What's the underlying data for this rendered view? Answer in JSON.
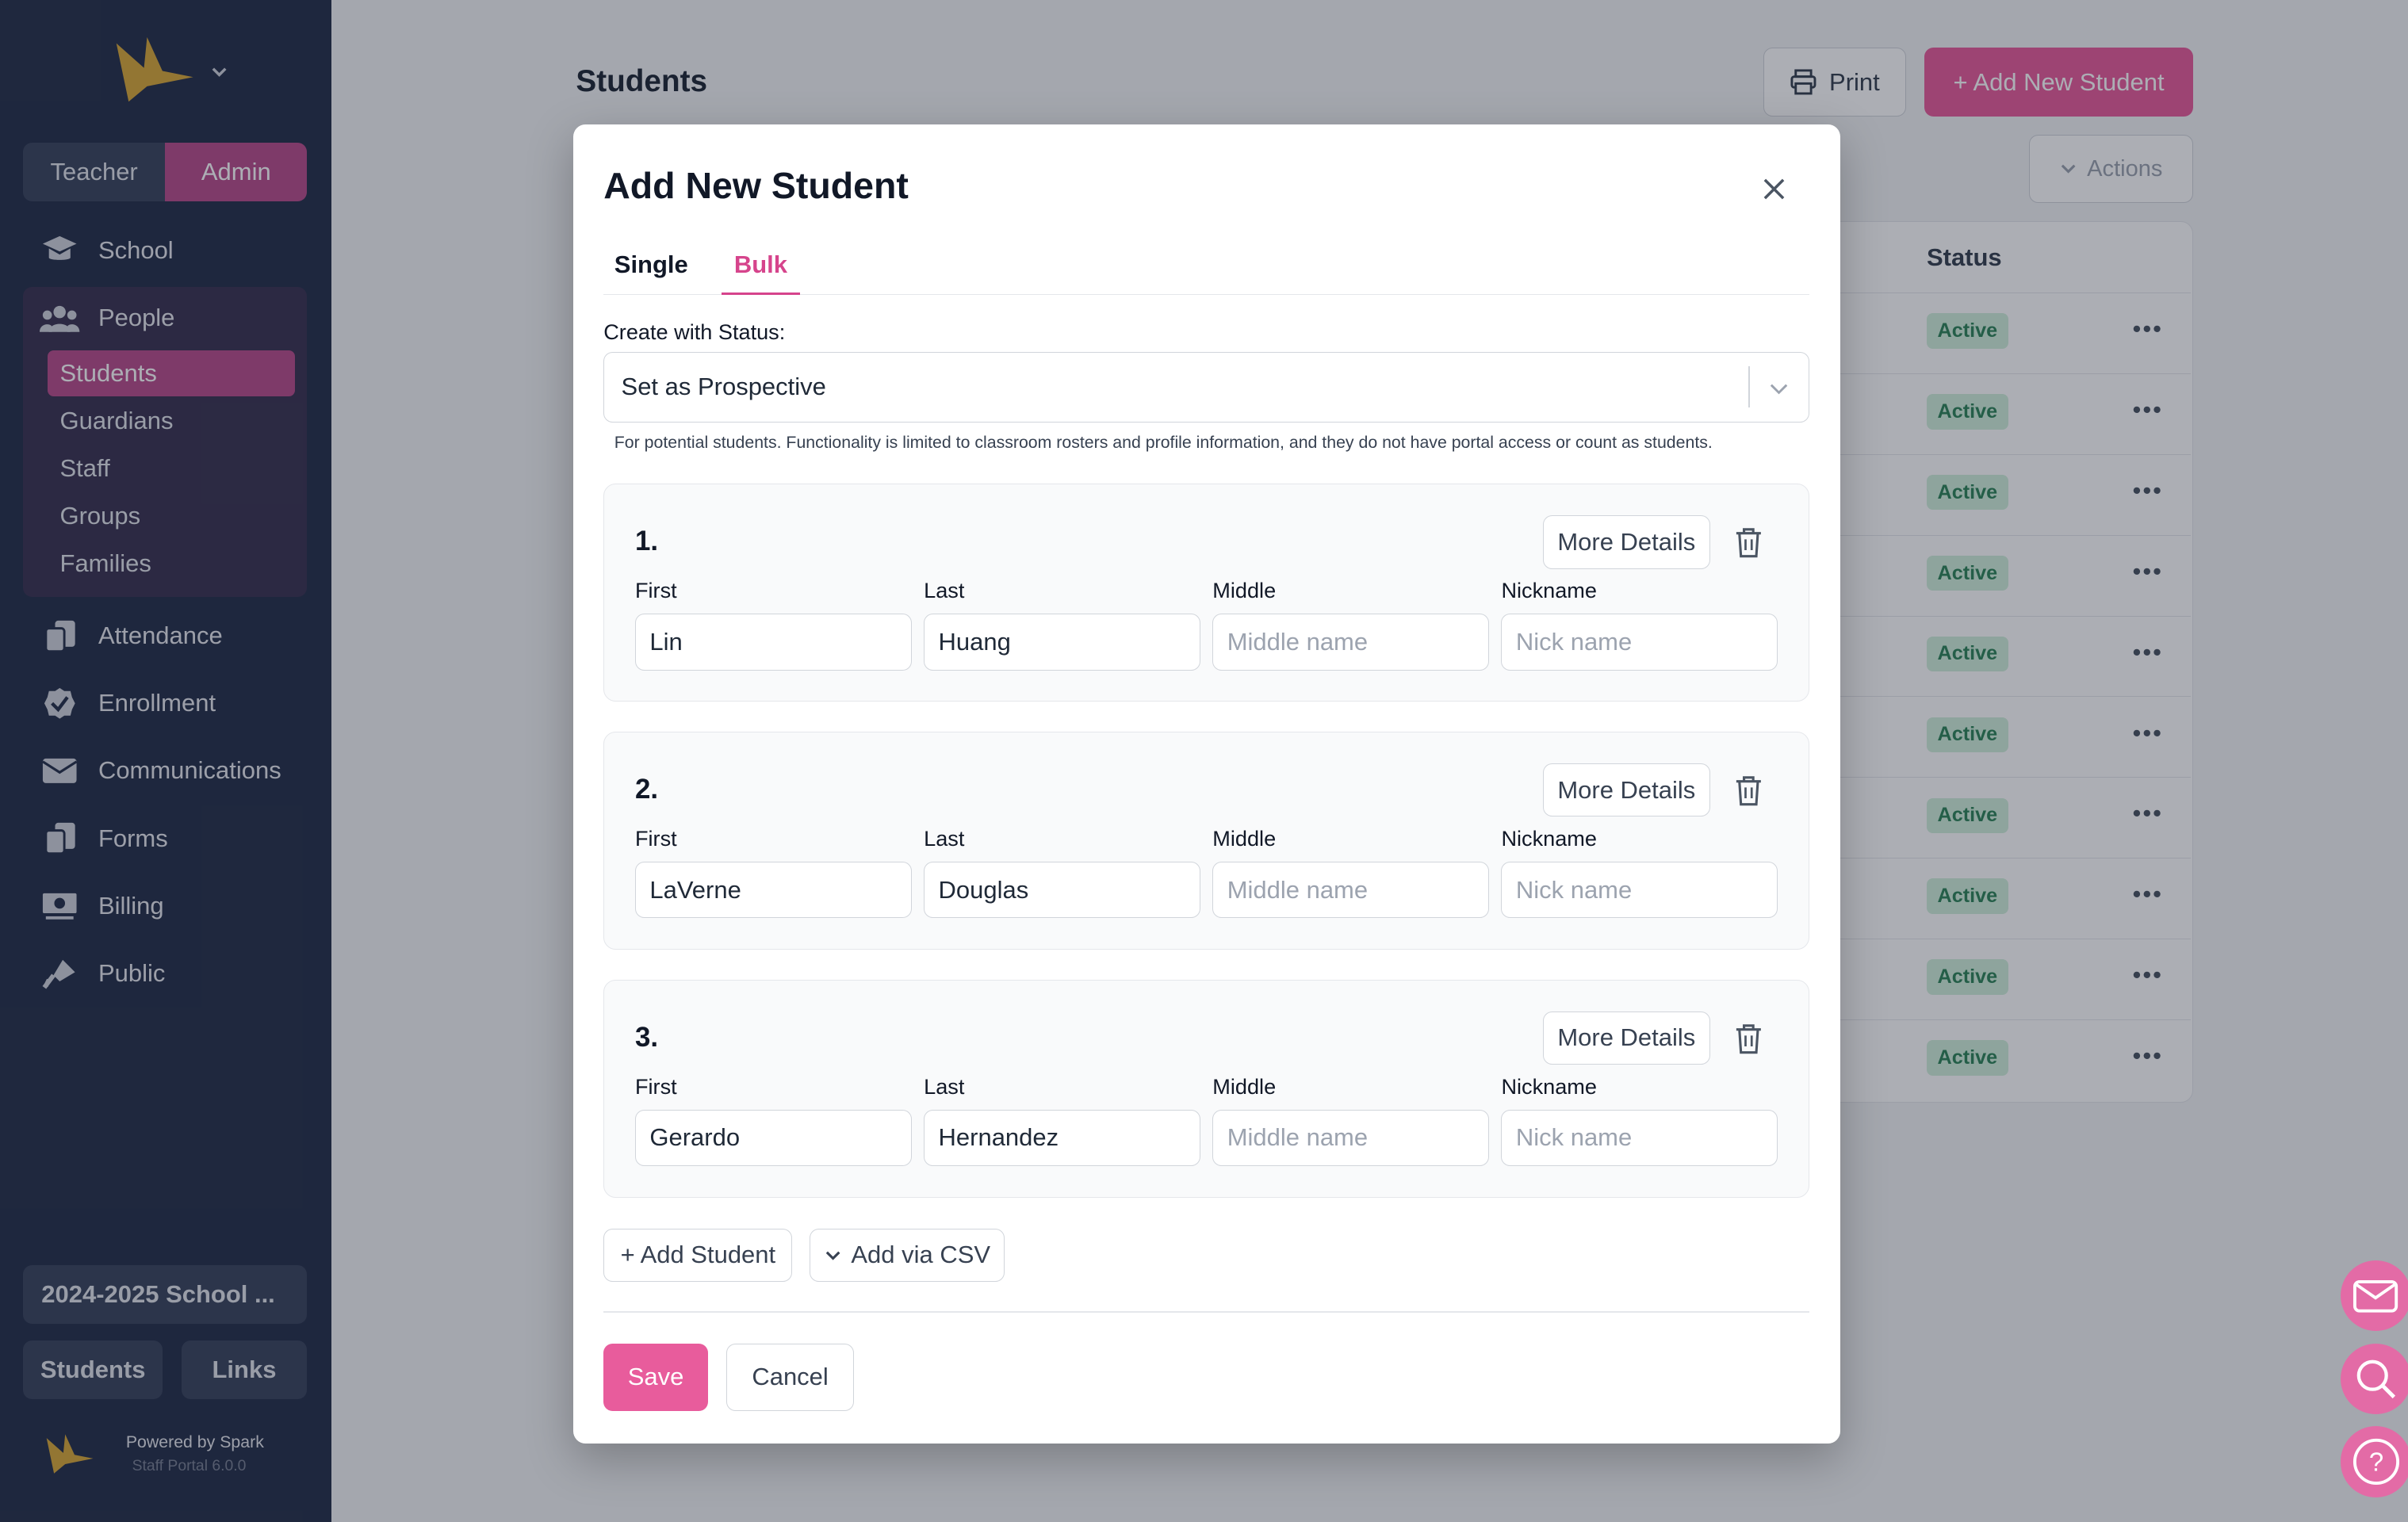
{
  "sidebar": {
    "roles": {
      "teacher": "Teacher",
      "admin": "Admin"
    },
    "nav": {
      "school": "School",
      "people": "People",
      "people_sub": [
        "Students",
        "Guardians",
        "Staff",
        "Groups",
        "Families"
      ],
      "attendance": "Attendance",
      "enrollment": "Enrollment",
      "communications": "Communications",
      "forms": "Forms",
      "billing": "Billing",
      "public": "Public"
    },
    "year_button": "2024-2025 School ...",
    "bottom_buttons": {
      "students": "Students",
      "links": "Links"
    },
    "powered_by": "Powered by Spark",
    "version": "Staff Portal 6.0.0"
  },
  "main": {
    "title": "Students",
    "print_label": "Print",
    "add_label": "+ Add New Student",
    "actions_label": "Actions",
    "table_header_status": "Status",
    "rows": [
      {
        "status": "Active"
      },
      {
        "status": "Active"
      },
      {
        "status": "Active"
      },
      {
        "status": "Active"
      },
      {
        "status": "Active"
      },
      {
        "status": "Active"
      },
      {
        "status": "Active"
      },
      {
        "status": "Active"
      },
      {
        "status": "Active"
      },
      {
        "status": "Active"
      }
    ]
  },
  "modal": {
    "title": "Add New Student",
    "tabs": {
      "single": "Single",
      "bulk": "Bulk"
    },
    "status_label": "Create with Status:",
    "status_value": "Set as Prospective",
    "status_help": "For potential students. Functionality is limited to classroom rosters and profile information, and they do not have portal access or count as students.",
    "field_labels": {
      "first": "First",
      "last": "Last",
      "middle": "Middle",
      "nickname": "Nickname"
    },
    "placeholders": {
      "middle": "Middle name",
      "nickname": "Nick name"
    },
    "more_details": "More Details",
    "students": [
      {
        "num": "1.",
        "first": "Lin",
        "last": "Huang"
      },
      {
        "num": "2.",
        "first": "LaVerne",
        "last": "Douglas"
      },
      {
        "num": "3.",
        "first": "Gerardo",
        "last": "Hernandez"
      }
    ],
    "add_student": "+ Add Student",
    "add_csv": "Add via CSV",
    "save": "Save",
    "cancel": "Cancel"
  },
  "colors": {
    "accent": "#e85c9c",
    "sidebar": "#26304a",
    "active_badge": "#d1f0dc"
  },
  "icons": [
    "logo-icon",
    "chevron-down-icon",
    "school-icon",
    "people-icon",
    "attendance-icon",
    "enrollment-icon",
    "communications-icon",
    "forms-icon",
    "billing-icon",
    "public-icon",
    "printer-icon",
    "close-icon",
    "trash-icon",
    "mail-icon",
    "search-icon",
    "help-icon"
  ]
}
